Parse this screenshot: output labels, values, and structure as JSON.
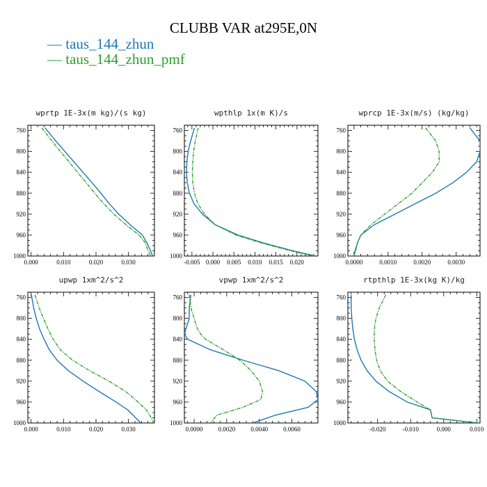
{
  "figure": {
    "title": "CLUBB VAR at295E,0N",
    "legend": [
      {
        "label": "taus_144_zhun",
        "color": "#1f77b4"
      },
      {
        "label": "taus_144_zhun_pmf",
        "color": "#2ca02c"
      }
    ]
  },
  "chart_data": [
    {
      "type": "line",
      "title": "wprtp  1E-3x(m kg)/(s kg)",
      "xlim": [
        -0.001,
        0.038
      ],
      "ylim": [
        1000,
        750
      ],
      "y_inverted": true,
      "xticks": [
        0.0,
        0.01,
        0.02,
        0.03
      ],
      "xtick_labels": [
        "0.000",
        "0.010",
        "0.020",
        "0.030"
      ],
      "yticks": [
        760,
        800,
        840,
        880,
        920,
        960,
        1000
      ],
      "y": [
        755,
        780,
        800,
        820,
        840,
        860,
        880,
        900,
        920,
        940,
        960,
        975,
        990,
        1000
      ],
      "series": [
        {
          "name": "taus_144_zhun",
          "color": "#1f77b4",
          "values": [
            0.0043,
            0.0076,
            0.0104,
            0.0132,
            0.016,
            0.0188,
            0.0215,
            0.0241,
            0.027,
            0.0305,
            0.0343,
            0.0357,
            0.0368,
            0.0375
          ]
        },
        {
          "name": "taus_144_zhun_pmf",
          "color": "#2ca02c",
          "values": [
            0.0033,
            0.0064,
            0.009,
            0.0117,
            0.0143,
            0.017,
            0.0196,
            0.0224,
            0.0255,
            0.0292,
            0.0333,
            0.0352,
            0.036,
            0.037
          ]
        }
      ]
    },
    {
      "type": "line",
      "title": "wpthlp  1x(m K)/s",
      "xlim": [
        -0.0068,
        0.025
      ],
      "ylim": [
        1000,
        750
      ],
      "y_inverted": true,
      "xticks": [
        -0.005,
        0.0,
        0.005,
        0.01,
        0.015,
        0.02
      ],
      "xtick_labels": [
        "-0.005",
        "0.000",
        "0.005",
        "0.010",
        "0.015",
        "0.020"
      ],
      "yticks": [
        760,
        800,
        840,
        880,
        920,
        960,
        1000
      ],
      "y": [
        755,
        780,
        800,
        820,
        840,
        860,
        880,
        900,
        920,
        940,
        960,
        975,
        990,
        1000
      ],
      "series": [
        {
          "name": "taus_144_zhun",
          "color": "#1f77b4",
          "values": [
            -0.0044,
            -0.0053,
            -0.0059,
            -0.0062,
            -0.0063,
            -0.0061,
            -0.0056,
            -0.0045,
            -0.0025,
            0.0005,
            0.006,
            0.012,
            0.019,
            0.0245
          ]
        },
        {
          "name": "taus_144_zhun_pmf",
          "color": "#2ca02c",
          "values": [
            -0.0035,
            -0.0042,
            -0.0046,
            -0.0048,
            -0.0049,
            -0.0048,
            -0.0044,
            -0.0036,
            -0.002,
            0.0005,
            0.0055,
            0.0115,
            0.0185,
            0.024
          ]
        }
      ]
    },
    {
      "type": "line",
      "title": "wprcp  1E-3x(m/s) (kg/kg)",
      "xlim": [
        -0.00018,
        0.0037
      ],
      "ylim": [
        1000,
        750
      ],
      "y_inverted": true,
      "xticks": [
        0.0,
        0.001,
        0.002,
        0.003
      ],
      "xtick_labels": [
        "0.0000",
        "0.0010",
        "0.0020",
        "0.0030"
      ],
      "yticks": [
        760,
        800,
        840,
        880,
        920,
        960,
        1000
      ],
      "y": [
        755,
        780,
        800,
        820,
        840,
        860,
        880,
        900,
        920,
        940,
        960,
        975,
        990,
        1000
      ],
      "series": [
        {
          "name": "taus_144_zhun",
          "color": "#1f77b4",
          "values": [
            0.0034,
            0.0037,
            0.0037,
            0.0036,
            0.0033,
            0.0029,
            0.0024,
            0.0018,
            0.0012,
            0.0006,
            0.0002,
            0.0001,
            3e-05,
            0.0
          ]
        },
        {
          "name": "taus_144_zhun_pmf",
          "color": "#2ca02c",
          "values": [
            0.0021,
            0.0024,
            0.0025,
            0.0025,
            0.0023,
            0.002,
            0.0017,
            0.0013,
            0.0009,
            0.0005,
            0.0002,
            0.0001,
            5e-05,
            0.0
          ]
        }
      ]
    },
    {
      "type": "line",
      "title": "upwp  1xm^2/s^2",
      "xlim": [
        -0.001,
        0.038
      ],
      "ylim": [
        1000,
        750
      ],
      "y_inverted": true,
      "xticks": [
        0.0,
        0.01,
        0.02,
        0.03
      ],
      "xtick_labels": [
        "0.000",
        "0.010",
        "0.020",
        "0.030"
      ],
      "yticks": [
        760,
        800,
        840,
        880,
        920,
        960,
        1000
      ],
      "y": [
        755,
        780,
        800,
        820,
        840,
        860,
        880,
        900,
        920,
        940,
        960,
        975,
        990,
        1000
      ],
      "series": [
        {
          "name": "taus_144_zhun",
          "color": "#1f77b4",
          "values": [
            0.0001,
            0.0008,
            0.0016,
            0.0026,
            0.004,
            0.0056,
            0.008,
            0.0115,
            0.016,
            0.021,
            0.0262,
            0.0298,
            0.0322,
            0.0338
          ]
        },
        {
          "name": "taus_144_zhun_pmf",
          "color": "#2ca02c",
          "values": [
            0.0012,
            0.0025,
            0.0038,
            0.0052,
            0.0068,
            0.009,
            0.0128,
            0.018,
            0.024,
            0.0292,
            0.033,
            0.0355,
            0.037,
            0.0378
          ]
        }
      ]
    },
    {
      "type": "line",
      "title": "vpwp  1xm^2/s^2",
      "xlim": [
        -0.0006,
        0.0076
      ],
      "ylim": [
        1000,
        750
      ],
      "y_inverted": true,
      "xticks": [
        0.0,
        0.002,
        0.004,
        0.006
      ],
      "xtick_labels": [
        "0.0000",
        "0.0020",
        "0.0040",
        "0.0060"
      ],
      "yticks": [
        760,
        800,
        840,
        880,
        920,
        960,
        1000
      ],
      "y": [
        755,
        780,
        800,
        820,
        830,
        840,
        860,
        880,
        900,
        920,
        940,
        955,
        970,
        985,
        1000
      ],
      "series": [
        {
          "name": "taus_144_zhun",
          "color": "#1f77b4",
          "values": [
            -0.0002,
            -0.0003,
            -0.0003,
            -0.0005,
            -0.0006,
            -0.0004,
            0.001,
            0.003,
            0.0052,
            0.0068,
            0.0075,
            0.0076,
            0.007,
            0.005,
            0.0036
          ]
        },
        {
          "name": "taus_144_zhun_pmf",
          "color": "#2ca02c",
          "values": [
            -0.0003,
            -0.0002,
            0.0,
            0.0002,
            0.0004,
            0.0007,
            0.0018,
            0.0028,
            0.0035,
            0.004,
            0.0042,
            0.0041,
            0.003,
            0.0014,
            0.001
          ]
        }
      ]
    },
    {
      "type": "line",
      "title": "rtpthlp  1E-3x(kg K)/kg",
      "xlim": [
        -0.029,
        0.011
      ],
      "ylim": [
        1000,
        750
      ],
      "y_inverted": true,
      "xticks": [
        -0.02,
        -0.01,
        0.0,
        0.01
      ],
      "xtick_labels": [
        "-0.020",
        "-0.010",
        "0.000",
        "0.010"
      ],
      "yticks": [
        760,
        800,
        840,
        880,
        920,
        960,
        1000
      ],
      "y": [
        755,
        780,
        800,
        820,
        840,
        860,
        880,
        900,
        920,
        940,
        960,
        975,
        990,
        997,
        1000
      ],
      "series": [
        {
          "name": "taus_144_zhun",
          "color": "#1f77b4",
          "values": [
            -0.028,
            -0.028,
            -0.0278,
            -0.0275,
            -0.027,
            -0.0262,
            -0.025,
            -0.0232,
            -0.0205,
            -0.0165,
            -0.011,
            -0.004,
            -0.0035,
            0.006,
            0.0105
          ]
        },
        {
          "name": "taus_144_zhun_pmf",
          "color": "#2ca02c",
          "values": [
            -0.0175,
            -0.0195,
            -0.0205,
            -0.021,
            -0.021,
            -0.0208,
            -0.0203,
            -0.0192,
            -0.017,
            -0.013,
            -0.008,
            -0.004,
            -0.0035,
            0.006,
            0.0105
          ]
        }
      ]
    }
  ]
}
